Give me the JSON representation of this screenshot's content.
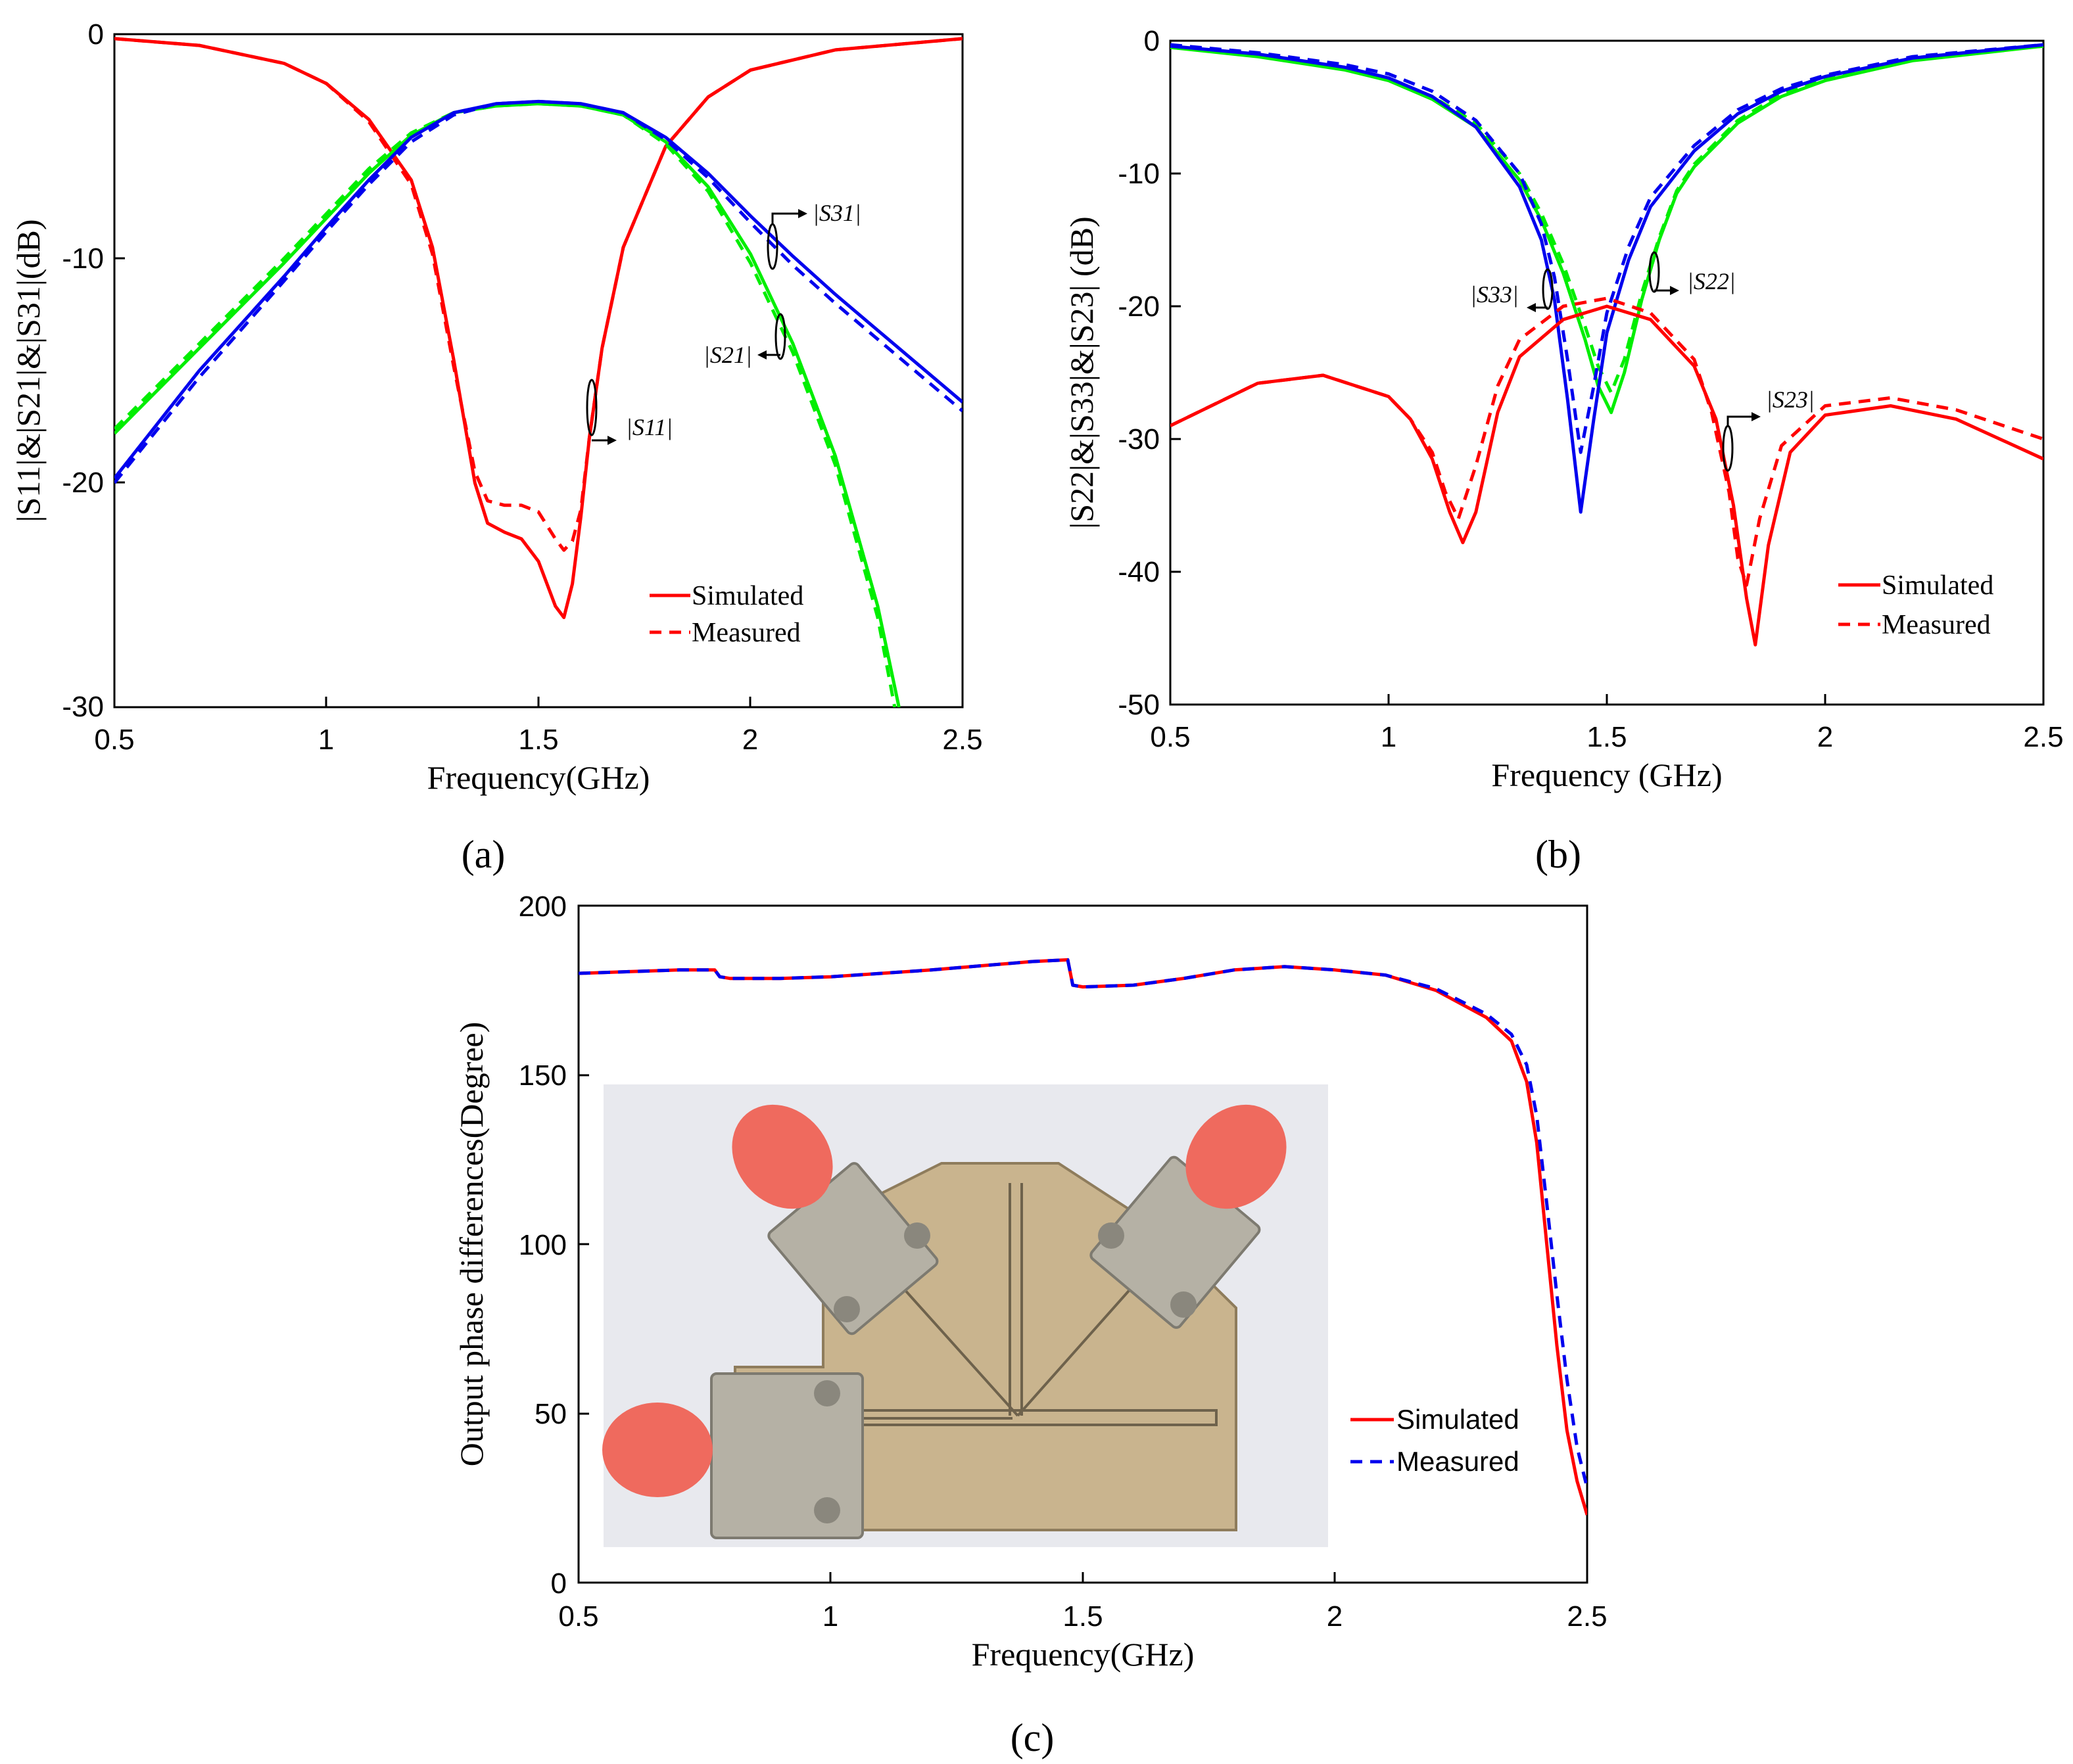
{
  "colors": {
    "red": "#ff0000",
    "green": "#00ee00",
    "blue": "#0000ee",
    "black": "#000000",
    "photo_bg": "#e8e9ee",
    "board": "#c9b48e",
    "connector": "#b5b1a5",
    "cap": "#ef6a5e"
  },
  "panels": {
    "a": "(a)",
    "b": "(b)",
    "c": "(c)"
  },
  "chart_data": [
    {
      "id": "a",
      "type": "line",
      "xlabel": "Frequency(GHz)",
      "ylabel": "|S11|&|S21|&|S31|(dB)",
      "xlim": [
        0.5,
        2.5
      ],
      "ylim": [
        -30,
        0
      ],
      "xticks": [
        "0.5",
        "1",
        "1.5",
        "2",
        "2.5"
      ],
      "yticks": [
        "0",
        "-10",
        "-20",
        "-30"
      ],
      "legend": {
        "position": "lower-right",
        "simulated": "Simulated",
        "measured": "Measured"
      },
      "annotations": {
        "s11": "|S11|",
        "s21": "|S21|",
        "s31": "|S31|"
      },
      "series": [
        {
          "name": "|S11| Simulated",
          "color": "red",
          "dash": false,
          "x": [
            0.5,
            0.7,
            0.9,
            1.0,
            1.1,
            1.2,
            1.25,
            1.3,
            1.35,
            1.38,
            1.42,
            1.46,
            1.5,
            1.54,
            1.56,
            1.58,
            1.6,
            1.62,
            1.65,
            1.7,
            1.8,
            1.9,
            2.0,
            2.2,
            2.5
          ],
          "y": [
            -0.2,
            -0.5,
            -1.3,
            -2.2,
            -3.8,
            -6.5,
            -9.5,
            -14.5,
            -20.0,
            -21.8,
            -22.2,
            -22.5,
            -23.5,
            -25.5,
            -26.0,
            -24.5,
            -21.5,
            -18.0,
            -14.0,
            -9.5,
            -5.0,
            -2.8,
            -1.6,
            -0.7,
            -0.2
          ]
        },
        {
          "name": "|S11| Measured",
          "color": "red",
          "dash": true,
          "x": [
            0.5,
            0.7,
            0.9,
            1.0,
            1.1,
            1.2,
            1.25,
            1.3,
            1.35,
            1.38,
            1.42,
            1.46,
            1.5,
            1.54,
            1.56,
            1.58,
            1.6,
            1.62,
            1.65,
            1.7,
            1.8,
            1.9,
            2.0,
            2.2,
            2.5
          ],
          "y": [
            -0.2,
            -0.5,
            -1.3,
            -2.2,
            -3.9,
            -6.7,
            -9.8,
            -14.8,
            -19.5,
            -20.8,
            -21.0,
            -21.0,
            -21.3,
            -22.5,
            -23.0,
            -22.6,
            -21.2,
            -18.0,
            -14.0,
            -9.5,
            -5.0,
            -2.8,
            -1.6,
            -0.7,
            -0.2
          ]
        },
        {
          "name": "|S21| Simulated",
          "color": "green",
          "dash": false,
          "x": [
            0.5,
            0.7,
            0.9,
            1.0,
            1.1,
            1.2,
            1.3,
            1.4,
            1.5,
            1.6,
            1.7,
            1.8,
            1.9,
            2.0,
            2.1,
            2.2,
            2.3,
            2.35
          ],
          "y": [
            -17.8,
            -14.0,
            -10.2,
            -8.2,
            -6.2,
            -4.5,
            -3.5,
            -3.2,
            -3.1,
            -3.2,
            -3.6,
            -4.8,
            -6.8,
            -9.8,
            -13.8,
            -18.8,
            -25.5,
            -30
          ]
        },
        {
          "name": "|S21| Measured",
          "color": "green",
          "dash": true,
          "x": [
            0.5,
            0.7,
            0.9,
            1.0,
            1.1,
            1.2,
            1.3,
            1.4,
            1.5,
            1.6,
            1.7,
            1.8,
            1.9,
            2.0,
            2.1,
            2.2,
            2.3,
            2.34
          ],
          "y": [
            -17.6,
            -13.8,
            -10.0,
            -8.0,
            -6.0,
            -4.4,
            -3.5,
            -3.2,
            -3.1,
            -3.2,
            -3.6,
            -4.9,
            -7.0,
            -10.2,
            -14.2,
            -19.2,
            -26.0,
            -30
          ]
        },
        {
          "name": "|S31| Simulated",
          "color": "blue",
          "dash": false,
          "x": [
            0.5,
            0.7,
            0.9,
            1.0,
            1.1,
            1.2,
            1.3,
            1.4,
            1.5,
            1.6,
            1.7,
            1.8,
            1.9,
            2.0,
            2.1,
            2.2,
            2.3,
            2.4,
            2.5
          ],
          "y": [
            -19.8,
            -15.0,
            -10.8,
            -8.6,
            -6.5,
            -4.6,
            -3.5,
            -3.1,
            -3.0,
            -3.1,
            -3.5,
            -4.6,
            -6.2,
            -8.1,
            -9.9,
            -11.6,
            -13.2,
            -14.8,
            -16.4
          ]
        },
        {
          "name": "|S31| Measured",
          "color": "blue",
          "dash": true,
          "x": [
            0.5,
            0.7,
            0.9,
            1.0,
            1.1,
            1.2,
            1.3,
            1.4,
            1.5,
            1.6,
            1.7,
            1.8,
            1.9,
            2.0,
            2.1,
            2.2,
            2.3,
            2.4,
            2.5
          ],
          "y": [
            -20.0,
            -15.3,
            -11.0,
            -8.8,
            -6.7,
            -4.8,
            -3.6,
            -3.1,
            -3.0,
            -3.1,
            -3.5,
            -4.7,
            -6.4,
            -8.4,
            -10.3,
            -12.0,
            -13.6,
            -15.2,
            -16.8
          ]
        }
      ]
    },
    {
      "id": "b",
      "type": "line",
      "xlabel": "Frequency (GHz)",
      "ylabel": "|S22|&|S33|&|S23| (dB)",
      "xlim": [
        0.5,
        2.5
      ],
      "ylim": [
        -50,
        0
      ],
      "xticks": [
        "0.5",
        "1",
        "1.5",
        "2",
        "2.5"
      ],
      "yticks": [
        "0",
        "-10",
        "-20",
        "-30",
        "-40",
        "-50"
      ],
      "legend": {
        "position": "lower-right",
        "simulated": "Simulated",
        "measured": "Measured"
      },
      "annotations": {
        "s33": "|S33|",
        "s22": "|S22|",
        "s23": "|S23|"
      },
      "series": [
        {
          "name": "|S22| Simulated",
          "color": "green",
          "dash": false,
          "x": [
            0.5,
            0.7,
            0.9,
            1.0,
            1.1,
            1.2,
            1.3,
            1.35,
            1.4,
            1.45,
            1.48,
            1.51,
            1.54,
            1.58,
            1.62,
            1.66,
            1.7,
            1.8,
            1.9,
            2.0,
            2.2,
            2.5
          ],
          "y": [
            -0.5,
            -1.2,
            -2.2,
            -3.0,
            -4.4,
            -6.5,
            -10.5,
            -13.5,
            -17.5,
            -22.5,
            -26.0,
            -28.0,
            -25.0,
            -19.5,
            -15.0,
            -11.5,
            -9.5,
            -6.2,
            -4.2,
            -3.0,
            -1.5,
            -0.4
          ]
        },
        {
          "name": "|S22| Measured",
          "color": "green",
          "dash": true,
          "x": [
            0.5,
            0.7,
            0.9,
            1.0,
            1.1,
            1.2,
            1.3,
            1.35,
            1.4,
            1.45,
            1.48,
            1.51,
            1.54,
            1.58,
            1.62,
            1.66,
            1.7,
            1.8,
            1.9,
            2.0,
            2.2,
            2.5
          ],
          "y": [
            -0.5,
            -1.1,
            -2.1,
            -2.9,
            -4.2,
            -6.2,
            -10.0,
            -13.0,
            -16.8,
            -21.5,
            -24.5,
            -26.5,
            -24.0,
            -19.0,
            -14.8,
            -11.3,
            -9.3,
            -6.0,
            -4.0,
            -2.9,
            -1.4,
            -0.4
          ]
        },
        {
          "name": "|S33| Simulated",
          "color": "blue",
          "dash": false,
          "x": [
            0.5,
            0.7,
            0.9,
            1.0,
            1.1,
            1.2,
            1.3,
            1.35,
            1.38,
            1.41,
            1.44,
            1.47,
            1.5,
            1.55,
            1.6,
            1.7,
            1.8,
            1.9,
            2.0,
            2.2,
            2.5
          ],
          "y": [
            -0.4,
            -1.0,
            -2.0,
            -2.8,
            -4.2,
            -6.5,
            -11.0,
            -15.0,
            -19.5,
            -27.0,
            -35.5,
            -28.5,
            -22.0,
            -16.5,
            -12.5,
            -8.3,
            -5.5,
            -3.8,
            -2.7,
            -1.3,
            -0.3
          ]
        },
        {
          "name": "|S33| Measured",
          "color": "blue",
          "dash": true,
          "x": [
            0.5,
            0.7,
            0.9,
            1.0,
            1.1,
            1.2,
            1.3,
            1.35,
            1.38,
            1.41,
            1.44,
            1.47,
            1.5,
            1.55,
            1.6,
            1.7,
            1.8,
            1.9,
            2.0,
            2.2,
            2.5
          ],
          "y": [
            -0.3,
            -0.9,
            -1.8,
            -2.5,
            -3.8,
            -6.0,
            -10.0,
            -13.8,
            -17.8,
            -24.0,
            -31.0,
            -26.0,
            -20.5,
            -15.5,
            -11.8,
            -7.9,
            -5.2,
            -3.6,
            -2.6,
            -1.2,
            -0.3
          ]
        },
        {
          "name": "|S23| Simulated",
          "color": "red",
          "dash": false,
          "x": [
            0.5,
            0.7,
            0.85,
            1.0,
            1.05,
            1.1,
            1.14,
            1.17,
            1.2,
            1.25,
            1.3,
            1.4,
            1.5,
            1.6,
            1.7,
            1.75,
            1.79,
            1.82,
            1.84,
            1.87,
            1.92,
            2.0,
            2.15,
            2.3,
            2.5
          ],
          "y": [
            -29.0,
            -25.8,
            -25.2,
            -26.8,
            -28.5,
            -31.5,
            -35.5,
            -37.8,
            -35.5,
            -28.0,
            -23.8,
            -21.0,
            -20.0,
            -21.0,
            -24.5,
            -28.5,
            -35.0,
            -42.0,
            -45.5,
            -38.0,
            -31.0,
            -28.2,
            -27.5,
            -28.5,
            -31.5
          ]
        },
        {
          "name": "|S23| Measured",
          "color": "red",
          "dash": true,
          "x": [
            0.5,
            0.7,
            0.85,
            1.0,
            1.05,
            1.1,
            1.13,
            1.16,
            1.2,
            1.25,
            1.3,
            1.4,
            1.5,
            1.6,
            1.7,
            1.74,
            1.78,
            1.8,
            1.82,
            1.85,
            1.9,
            2.0,
            2.15,
            2.3,
            2.5
          ],
          "y": [
            -29.0,
            -25.8,
            -25.2,
            -26.8,
            -28.5,
            -31.0,
            -34.0,
            -36.0,
            -32.0,
            -26.0,
            -22.5,
            -20.0,
            -19.4,
            -20.5,
            -24.0,
            -28.0,
            -34.0,
            -39.0,
            -41.0,
            -36.0,
            -30.5,
            -27.5,
            -26.9,
            -27.8,
            -30.0
          ]
        }
      ]
    },
    {
      "id": "c",
      "type": "line",
      "xlabel": "Frequency(GHz)",
      "ylabel": "Output phase differences(Degree)",
      "xlim": [
        0.5,
        2.5
      ],
      "ylim": [
        0,
        200
      ],
      "xticks": [
        "0.5",
        "1",
        "1.5",
        "2",
        "2.5"
      ],
      "yticks": [
        "0",
        "50",
        "100",
        "150",
        "200"
      ],
      "legend": {
        "position": "lower-right",
        "simulated": "Simulated",
        "measured": "Measured"
      },
      "inset": "photo of the fabricated power divider with three SMA connectors",
      "series": [
        {
          "name": "Simulated",
          "color": "red",
          "dash": false,
          "x": [
            0.5,
            0.6,
            0.7,
            0.77,
            0.78,
            0.8,
            0.9,
            1.0,
            1.2,
            1.4,
            1.47,
            1.48,
            1.5,
            1.6,
            1.7,
            1.8,
            1.9,
            2.0,
            2.1,
            2.2,
            2.3,
            2.35,
            2.38,
            2.4,
            2.42,
            2.44,
            2.46,
            2.48,
            2.5
          ],
          "y": [
            180,
            180.5,
            181,
            181,
            179,
            178.5,
            178.5,
            179,
            181,
            183.5,
            184,
            176.5,
            176,
            176.5,
            178.5,
            181,
            182,
            181,
            179.5,
            175,
            167,
            160,
            148,
            130,
            100,
            70,
            45,
            30,
            20
          ]
        },
        {
          "name": "Measured",
          "color": "blue",
          "dash": true,
          "x": [
            0.5,
            0.6,
            0.7,
            0.77,
            0.78,
            0.8,
            0.9,
            1.0,
            1.2,
            1.4,
            1.47,
            1.48,
            1.5,
            1.6,
            1.7,
            1.8,
            1.9,
            2.0,
            2.1,
            2.2,
            2.3,
            2.35,
            2.38,
            2.4,
            2.42,
            2.44,
            2.46,
            2.48,
            2.5
          ],
          "y": [
            180,
            180.5,
            181,
            181,
            179,
            178.5,
            178.5,
            179,
            181,
            183.5,
            184,
            176.5,
            176,
            176.5,
            178.5,
            181,
            182,
            181,
            179.5,
            175.5,
            168,
            162,
            153,
            138,
            112,
            85,
            60,
            40,
            28
          ]
        }
      ]
    }
  ]
}
